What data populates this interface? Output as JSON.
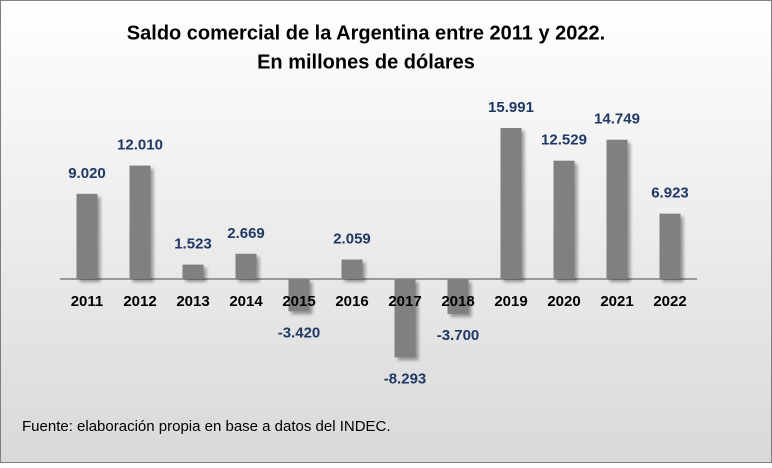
{
  "chart_data": {
    "type": "bar",
    "title": "Saldo comercial de la Argentina entre 2011 y 2022.",
    "subtitle": "En millones de dólares",
    "categories": [
      "2011",
      "2012",
      "2013",
      "2014",
      "2015",
      "2016",
      "2017",
      "2018",
      "2019",
      "2020",
      "2021",
      "2022"
    ],
    "values": [
      9020,
      12010,
      1523,
      2669,
      -3420,
      2059,
      -8293,
      -3700,
      15991,
      12529,
      14749,
      6923
    ],
    "value_labels": [
      "9.020",
      "12.010",
      "1.523",
      "2.669",
      "-3.420",
      "2.059",
      "-8.293",
      "-3.700",
      "15.991",
      "12.529",
      "14.749",
      "6.923"
    ],
    "color": "#808080",
    "label_color": "#1f3864",
    "source": "Fuente: elaboración propia en base a datos del INDEC."
  }
}
